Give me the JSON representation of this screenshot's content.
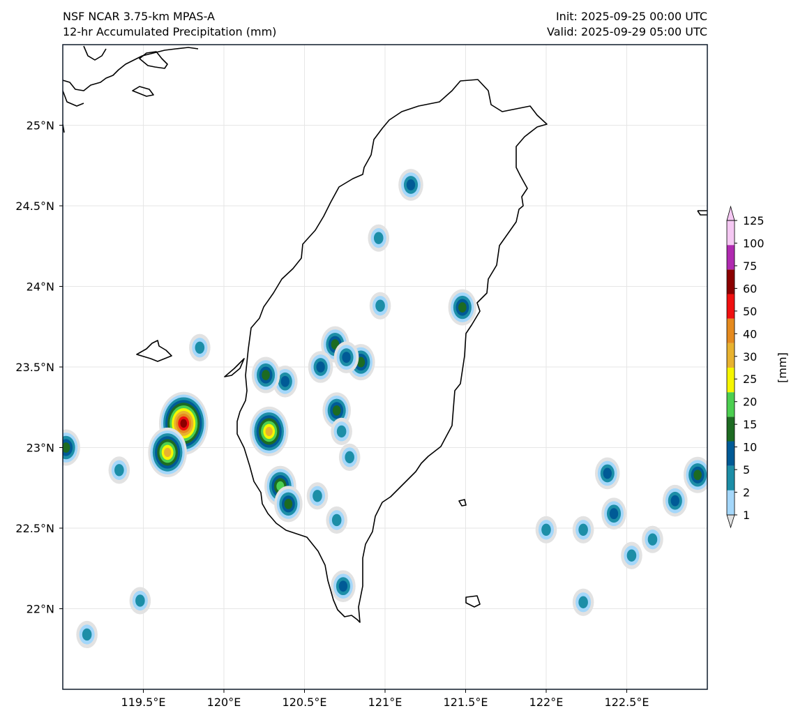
{
  "header": {
    "model": "NSF NCAR 3.75-km MPAS-A",
    "field": "12-hr Accumulated Precipitation (mm)",
    "init": "Init: 2025-09-25 00:00 UTC",
    "valid": "Valid: 2025-09-29 05:00 UTC"
  },
  "map": {
    "lon_range": [
      119.0,
      123.0
    ],
    "lat_range": [
      21.5,
      25.5
    ],
    "lon_ticks": [
      119.5,
      120.0,
      120.5,
      121.0,
      121.5,
      122.0,
      122.5
    ],
    "lon_tick_labels": [
      "119.5°E",
      "120°E",
      "120.5°E",
      "121°E",
      "121.5°E",
      "122°E",
      "122.5°E"
    ],
    "lat_ticks": [
      22.0,
      22.5,
      23.0,
      23.5,
      24.0,
      24.5,
      25.0
    ],
    "lat_tick_labels": [
      "22°N",
      "22.5°N",
      "23°N",
      "23.5°N",
      "24°N",
      "24.5°N",
      "25°N"
    ],
    "gridlines": true,
    "precip_cells": [
      {
        "lon": 119.75,
        "lat": 23.15,
        "peak": 60
      },
      {
        "lon": 119.65,
        "lat": 22.97,
        "peak": 30
      },
      {
        "lon": 120.28,
        "lat": 23.1,
        "peak": 30
      },
      {
        "lon": 120.35,
        "lat": 22.76,
        "peak": 20
      },
      {
        "lon": 120.4,
        "lat": 22.65,
        "peak": 15
      },
      {
        "lon": 120.38,
        "lat": 23.41,
        "peak": 10
      },
      {
        "lon": 120.26,
        "lat": 23.45,
        "peak": 15
      },
      {
        "lon": 120.7,
        "lat": 23.23,
        "peak": 15
      },
      {
        "lon": 120.69,
        "lat": 23.64,
        "peak": 15
      },
      {
        "lon": 120.6,
        "lat": 23.5,
        "peak": 10
      },
      {
        "lon": 120.85,
        "lat": 23.53,
        "peak": 15
      },
      {
        "lon": 120.76,
        "lat": 23.56,
        "peak": 10
      },
      {
        "lon": 121.16,
        "lat": 24.63,
        "peak": 10
      },
      {
        "lon": 121.48,
        "lat": 23.87,
        "peak": 15
      },
      {
        "lon": 120.96,
        "lat": 24.3,
        "peak": 5
      },
      {
        "lon": 120.97,
        "lat": 23.88,
        "peak": 5
      },
      {
        "lon": 120.74,
        "lat": 22.14,
        "peak": 10
      },
      {
        "lon": 120.7,
        "lat": 22.55,
        "peak": 5
      },
      {
        "lon": 120.78,
        "lat": 22.94,
        "peak": 5
      },
      {
        "lon": 120.73,
        "lat": 23.1,
        "peak": 5
      },
      {
        "lon": 120.58,
        "lat": 22.7,
        "peak": 5
      },
      {
        "lon": 119.85,
        "lat": 23.62,
        "peak": 5
      },
      {
        "lon": 119.02,
        "lat": 23.0,
        "peak": 15
      },
      {
        "lon": 119.35,
        "lat": 22.86,
        "peak": 5
      },
      {
        "lon": 119.48,
        "lat": 22.05,
        "peak": 5
      },
      {
        "lon": 119.15,
        "lat": 21.84,
        "peak": 5
      },
      {
        "lon": 122.38,
        "lat": 22.84,
        "peak": 10
      },
      {
        "lon": 122.42,
        "lat": 22.59,
        "peak": 10
      },
      {
        "lon": 122.8,
        "lat": 22.67,
        "peak": 10
      },
      {
        "lon": 122.94,
        "lat": 22.83,
        "peak": 15
      },
      {
        "lon": 122.66,
        "lat": 22.43,
        "peak": 5
      },
      {
        "lon": 122.53,
        "lat": 22.33,
        "peak": 5
      },
      {
        "lon": 122.0,
        "lat": 22.49,
        "peak": 5
      },
      {
        "lon": 122.23,
        "lat": 22.49,
        "peak": 5
      },
      {
        "lon": 122.23,
        "lat": 22.04,
        "peak": 5
      }
    ]
  },
  "colorbar": {
    "label": "[mm]",
    "levels": [
      "1",
      "2",
      "5",
      "10",
      "15",
      "20",
      "25",
      "30",
      "40",
      "50",
      "60",
      "75",
      "100",
      "125"
    ],
    "colors": [
      "#e2e2e2",
      "#a4d7fa",
      "#1c8ea7",
      "#005a96",
      "#1d6b22",
      "#4ccf50",
      "#f6f600",
      "#e8b22f",
      "#e58a1e",
      "#f01010",
      "#8b0000",
      "#b02ab0",
      "#f5c8f3"
    ],
    "extend": "both"
  }
}
